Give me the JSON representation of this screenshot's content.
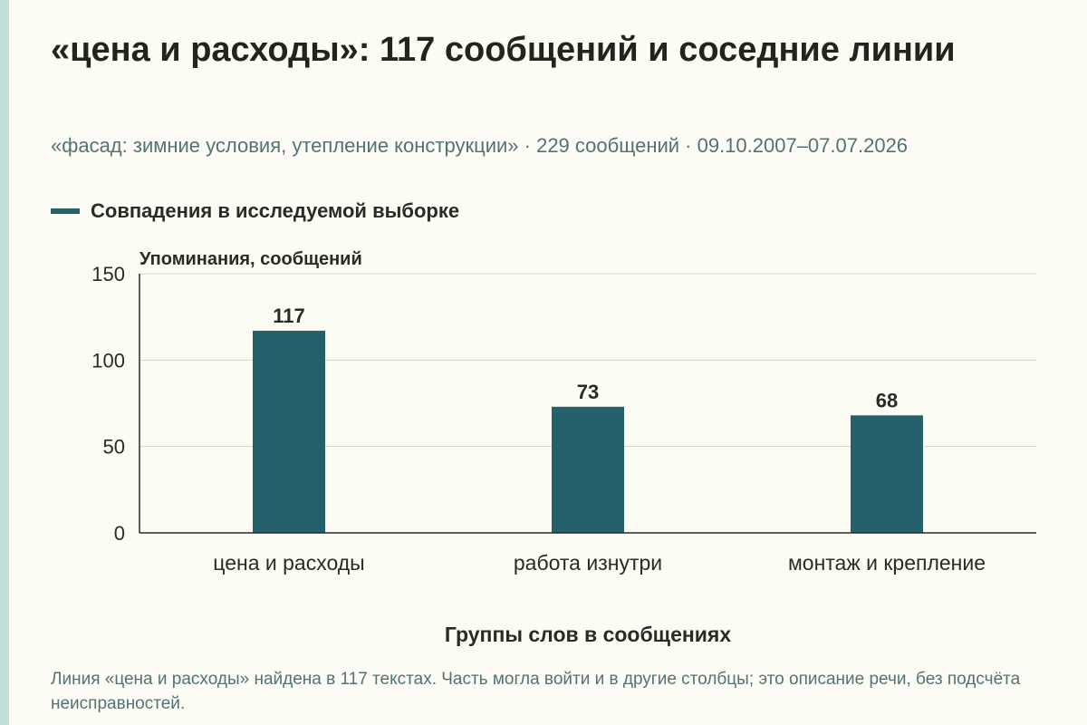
{
  "header": {
    "title": "«цена и расходы»: 117 сообщений и соседние линии",
    "subtitle": "«фасад: зимние условия, утепление конструкции» · 229 сообщений · 09.10.2007–07.07.2026"
  },
  "colors": {
    "bar": "#25616b",
    "accent_stripe": "#c2dedd",
    "background": "#fdfcf4",
    "text_muted": "#537275"
  },
  "chart_data": {
    "type": "bar",
    "categories": [
      "цена и расходы",
      "работа изнутри",
      "монтаж и крепление"
    ],
    "series": [
      {
        "name": "Совпадения в исследуемой выборке",
        "values": [
          117,
          73,
          68
        ]
      }
    ],
    "ylabel": "Упоминания, сообщений",
    "xlabel": "Группы слов в сообщениях",
    "ylim": [
      0,
      150
    ],
    "yticks": [
      0,
      50,
      100,
      150
    ],
    "grid": true,
    "legend_position": "top-left",
    "data_labels": true
  },
  "footnote": "Линия «цена и расходы» найдена в 117 текстах. Часть могла войти и в другие столбцы; это описание речи, без подсчёта неисправностей."
}
